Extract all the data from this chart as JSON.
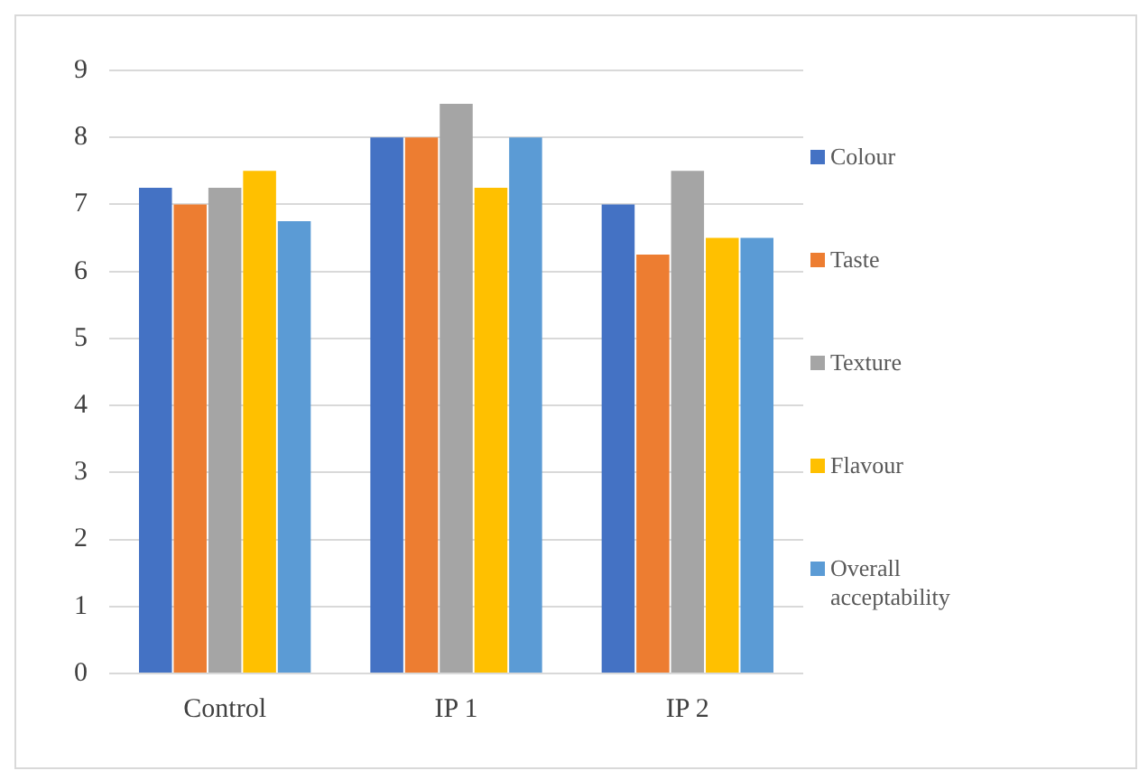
{
  "chart_data": {
    "type": "bar",
    "categories": [
      "Control",
      "IP 1",
      "IP 2"
    ],
    "series": [
      {
        "name": "Colour",
        "color": "#4472c4",
        "values": [
          7.25,
          8,
          7
        ]
      },
      {
        "name": "Taste",
        "color": "#ed7d31",
        "values": [
          7,
          8,
          6.25
        ]
      },
      {
        "name": "Texture",
        "color": "#a5a5a5",
        "values": [
          7.25,
          8.5,
          7.5
        ]
      },
      {
        "name": "Flavour",
        "color": "#ffc000",
        "values": [
          7.5,
          7.25,
          6.5
        ]
      },
      {
        "name": "Overall acceptability",
        "color": "#5b9bd5",
        "values": [
          6.75,
          8,
          6.5
        ]
      }
    ],
    "ylim": [
      0,
      9
    ],
    "yticks": [
      0,
      1,
      2,
      3,
      4,
      5,
      6,
      7,
      8,
      9
    ],
    "grid": "y",
    "legend": "right"
  }
}
